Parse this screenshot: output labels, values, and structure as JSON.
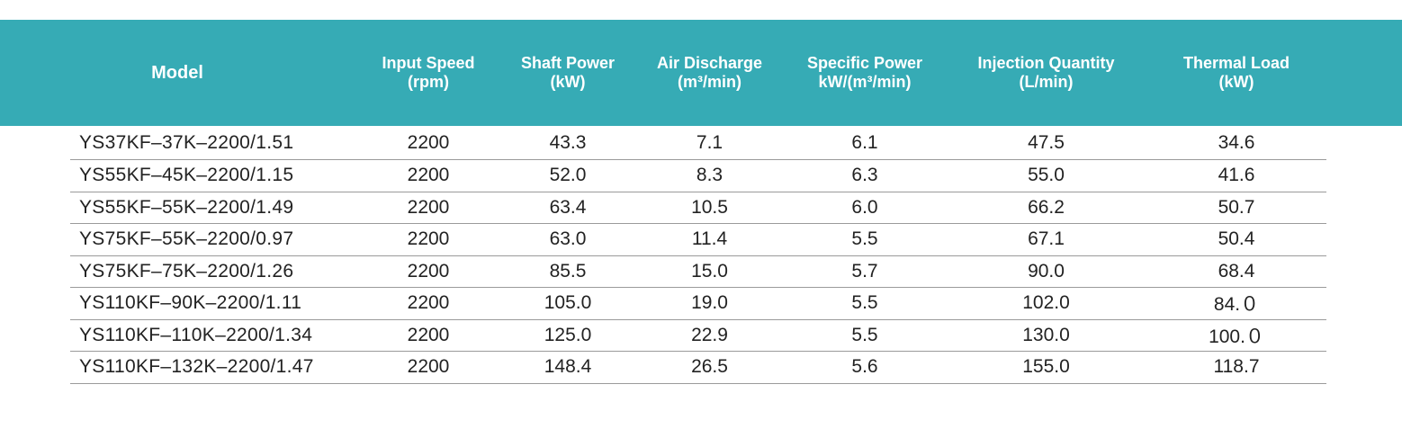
{
  "table": {
    "headers": [
      {
        "key": "model",
        "line1": "Model",
        "line2": ""
      },
      {
        "key": "input_speed",
        "line1": "Input Speed",
        "line2": "(rpm)"
      },
      {
        "key": "shaft_power",
        "line1": "Shaft Power",
        "line2": "(kW)"
      },
      {
        "key": "air_discharge",
        "line1": "Air Discharge",
        "line2": "(m³/min)"
      },
      {
        "key": "specific_power",
        "line1": "Specific Power",
        "line2": "kW/(m³/min)"
      },
      {
        "key": "injection_quantity",
        "line1": "Injection Quantity",
        "line2": "(L/min)"
      },
      {
        "key": "thermal_load",
        "line1": "Thermal Load",
        "line2": "(kW)"
      }
    ],
    "rows": [
      [
        "YS37KF–37K–2200/1.51",
        "2200",
        "43.3",
        "7.1",
        "6.1",
        "47.5",
        "34.6"
      ],
      [
        "YS55KF–45K–2200/1.15",
        "2200",
        "52.0",
        "8.3",
        "6.3",
        "55.0",
        "41.6"
      ],
      [
        "YS55KF–55K–2200/1.49",
        "2200",
        "63.4",
        "10.5",
        "6.0",
        "66.2",
        "50.7"
      ],
      [
        "YS75KF–55K–2200/0.97",
        "2200",
        "63.0",
        "11.4",
        "5.5",
        "67.1",
        "50.4"
      ],
      [
        "YS75KF–75K–2200/1.26",
        "2200",
        "85.5",
        "15.0",
        "5.7",
        "90.0",
        "68.4"
      ],
      [
        "YS110KF–90K–2200/1.11",
        "2200",
        "105.0",
        "19.0",
        "5.5",
        "102.0",
        "84.０"
      ],
      [
        "YS110KF–110K–2200/1.34",
        "2200",
        "125.0",
        "22.9",
        "5.5",
        "130.0",
        "100.０"
      ],
      [
        "YS110KF–132K–2200/1.47",
        "2200",
        "148.4",
        "26.5",
        "5.6",
        "155.0",
        "118.7"
      ]
    ]
  },
  "colors": {
    "header_background": "#36abb5",
    "header_text": "#ffffff",
    "row_divider": "#9a9a9a"
  }
}
